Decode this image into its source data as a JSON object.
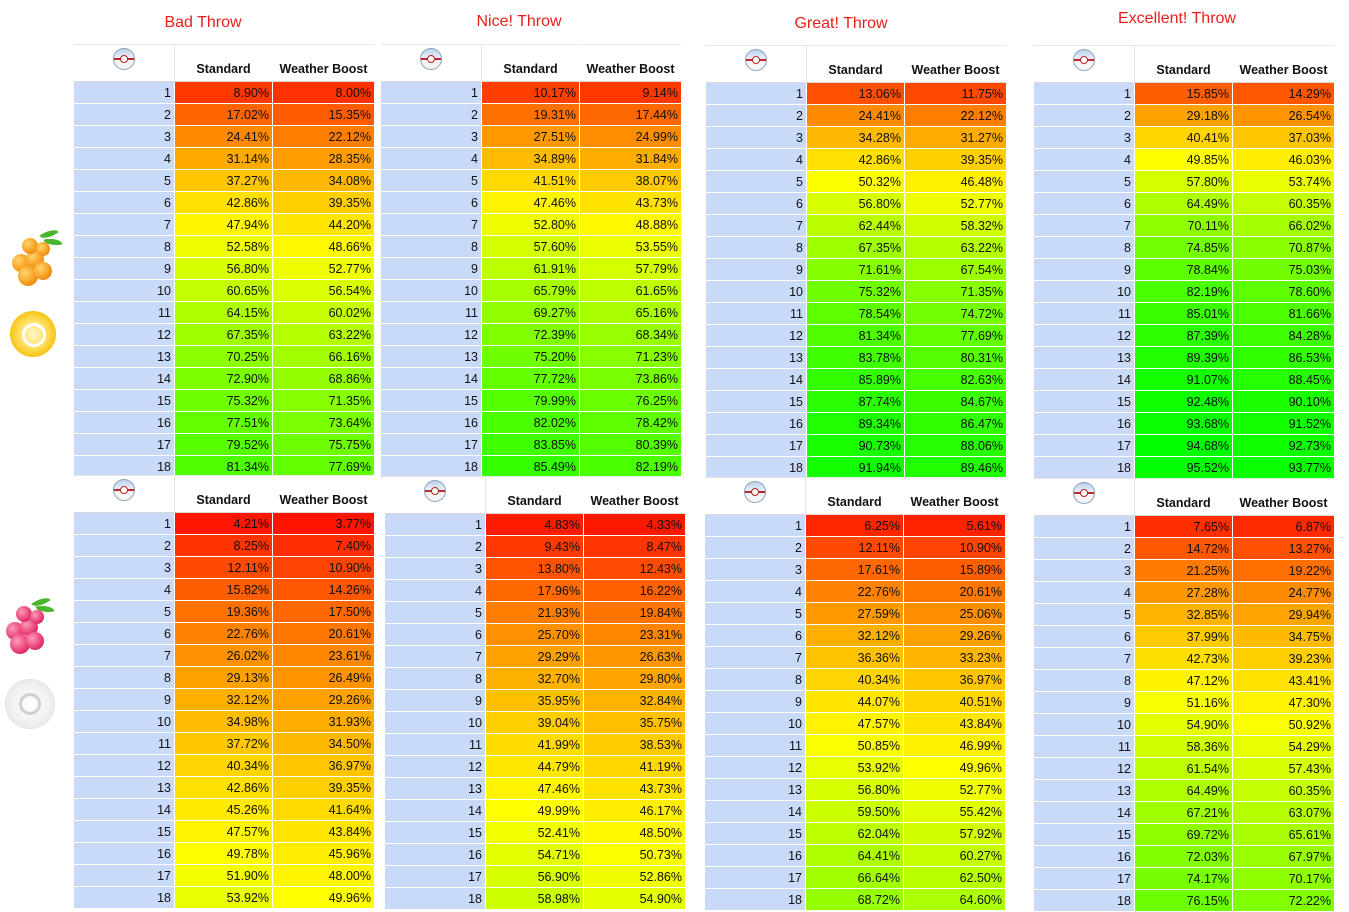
{
  "throw_titles": [
    "Bad Throw",
    "Nice! Throw",
    "Great! Throw",
    "Excellent! Throw"
  ],
  "column_headers": {
    "standard": "Standard",
    "weather_boost": "Weather Boost"
  },
  "icons": {
    "ball": "premier-ball-icon",
    "top_berry": "golden-razz-berry-icon",
    "top_medal": "gold-medal-icon",
    "bottom_berry": "razz-berry-icon",
    "bottom_medal": "no-medal-icon"
  },
  "color_scale": {
    "low": "#ff0000",
    "mid": "#ffff00",
    "high": "#00ff00"
  },
  "tables": {
    "top": [
      {
        "standard": [
          "8.90%",
          "17.02%",
          "24.41%",
          "31.14%",
          "37.27%",
          "42.86%",
          "47.94%",
          "52.58%",
          "56.80%",
          "60.65%",
          "64.15%",
          "67.35%",
          "70.25%",
          "72.90%",
          "75.32%",
          "77.51%",
          "79.52%",
          "81.34%"
        ],
        "weather": [
          "8.00%",
          "15.35%",
          "22.12%",
          "28.35%",
          "34.08%",
          "39.35%",
          "44.20%",
          "48.66%",
          "52.77%",
          "56.54%",
          "60.02%",
          "63.22%",
          "66.16%",
          "68.86%",
          "71.35%",
          "73.64%",
          "75.75%",
          "77.69%"
        ]
      },
      {
        "standard": [
          "10.17%",
          "19.31%",
          "27.51%",
          "34.89%",
          "41.51%",
          "47.46%",
          "52.80%",
          "57.60%",
          "61.91%",
          "65.79%",
          "69.27%",
          "72.39%",
          "75.20%",
          "77.72%",
          "79.99%",
          "82.02%",
          "83.85%",
          "85.49%"
        ],
        "weather": [
          "9.14%",
          "17.44%",
          "24.99%",
          "31.84%",
          "38.07%",
          "43.73%",
          "48.88%",
          "53.55%",
          "57.79%",
          "61.65%",
          "65.16%",
          "68.34%",
          "71.23%",
          "73.86%",
          "76.25%",
          "78.42%",
          "80.39%",
          "82.19%"
        ]
      },
      {
        "standard": [
          "13.06%",
          "24.41%",
          "34.28%",
          "42.86%",
          "50.32%",
          "56.80%",
          "62.44%",
          "67.35%",
          "71.61%",
          "75.32%",
          "78.54%",
          "81.34%",
          "83.78%",
          "85.89%",
          "87.74%",
          "89.34%",
          "90.73%",
          "91.94%"
        ],
        "weather": [
          "11.75%",
          "22.12%",
          "31.27%",
          "39.35%",
          "46.48%",
          "52.77%",
          "58.32%",
          "63.22%",
          "67.54%",
          "71.35%",
          "74.72%",
          "77.69%",
          "80.31%",
          "82.63%",
          "84.67%",
          "86.47%",
          "88.06%",
          "89.46%"
        ]
      },
      {
        "standard": [
          "15.85%",
          "29.18%",
          "40.41%",
          "49.85%",
          "57.80%",
          "64.49%",
          "70.11%",
          "74.85%",
          "78.84%",
          "82.19%",
          "85.01%",
          "87.39%",
          "89.39%",
          "91.07%",
          "92.48%",
          "93.68%",
          "94.68%",
          "95.52%"
        ],
        "weather": [
          "14.29%",
          "26.54%",
          "37.03%",
          "46.03%",
          "53.74%",
          "60.35%",
          "66.02%",
          "70.87%",
          "75.03%",
          "78.60%",
          "81.66%",
          "84.28%",
          "86.53%",
          "88.45%",
          "90.10%",
          "91.52%",
          "92.73%",
          "93.77%"
        ]
      }
    ],
    "bottom": [
      {
        "standard": [
          "4.21%",
          "8.25%",
          "12.11%",
          "15.82%",
          "19.36%",
          "22.76%",
          "26.02%",
          "29.13%",
          "32.12%",
          "34.98%",
          "37.72%",
          "40.34%",
          "42.86%",
          "45.26%",
          "47.57%",
          "49.78%",
          "51.90%",
          "53.92%"
        ],
        "weather": [
          "3.77%",
          "7.40%",
          "10.90%",
          "14.26%",
          "17.50%",
          "20.61%",
          "23.61%",
          "26.49%",
          "29.26%",
          "31.93%",
          "34.50%",
          "36.97%",
          "39.35%",
          "41.64%",
          "43.84%",
          "45.96%",
          "48.00%",
          "49.96%"
        ]
      },
      {
        "standard": [
          "4.83%",
          "9.43%",
          "13.80%",
          "17.96%",
          "21.93%",
          "25.70%",
          "29.29%",
          "32.70%",
          "35.95%",
          "39.04%",
          "41.99%",
          "44.79%",
          "47.46%",
          "49.99%",
          "52.41%",
          "54.71%",
          "56.90%",
          "58.98%"
        ],
        "weather": [
          "4.33%",
          "8.47%",
          "12.43%",
          "16.22%",
          "19.84%",
          "23.31%",
          "26.63%",
          "29.80%",
          "32.84%",
          "35.75%",
          "38.53%",
          "41.19%",
          "43.73%",
          "46.17%",
          "48.50%",
          "50.73%",
          "52.86%",
          "54.90%"
        ]
      },
      {
        "standard": [
          "6.25%",
          "12.11%",
          "17.61%",
          "22.76%",
          "27.59%",
          "32.12%",
          "36.36%",
          "40.34%",
          "44.07%",
          "47.57%",
          "50.85%",
          "53.92%",
          "56.80%",
          "59.50%",
          "62.04%",
          "64.41%",
          "66.64%",
          "68.72%"
        ],
        "weather": [
          "5.61%",
          "10.90%",
          "15.89%",
          "20.61%",
          "25.06%",
          "29.26%",
          "33.23%",
          "36.97%",
          "40.51%",
          "43.84%",
          "46.99%",
          "49.96%",
          "52.77%",
          "55.42%",
          "57.92%",
          "60.27%",
          "62.50%",
          "64.60%"
        ]
      },
      {
        "standard": [
          "7.65%",
          "14.72%",
          "21.25%",
          "27.28%",
          "32.85%",
          "37.99%",
          "42.73%",
          "47.12%",
          "51.16%",
          "54.90%",
          "58.36%",
          "61.54%",
          "64.49%",
          "67.21%",
          "69.72%",
          "72.03%",
          "74.17%",
          "76.15%"
        ],
        "weather": [
          "6.87%",
          "13.27%",
          "19.22%",
          "24.77%",
          "29.94%",
          "34.75%",
          "39.23%",
          "43.41%",
          "47.30%",
          "50.92%",
          "54.29%",
          "57.43%",
          "60.35%",
          "63.07%",
          "65.61%",
          "67.97%",
          "70.17%",
          "72.22%"
        ]
      }
    ]
  },
  "row_labels": [
    "1",
    "2",
    "3",
    "4",
    "5",
    "6",
    "7",
    "8",
    "9",
    "10",
    "11",
    "12",
    "13",
    "14",
    "15",
    "16",
    "17",
    "18"
  ]
}
